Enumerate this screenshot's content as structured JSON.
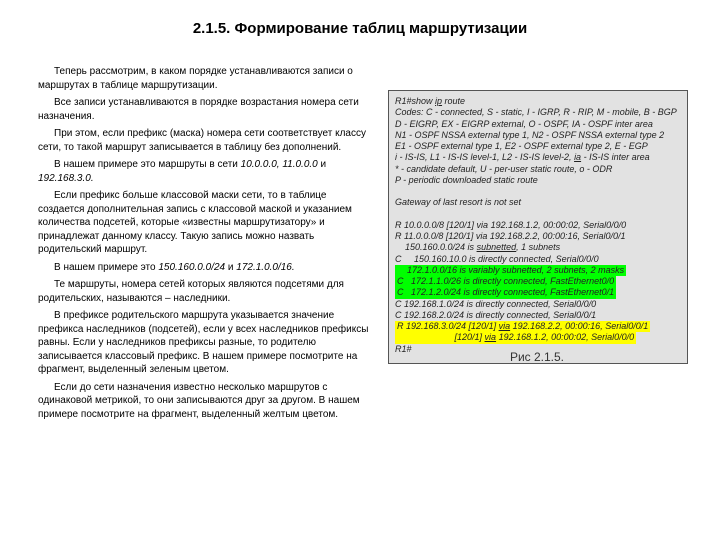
{
  "title": "2.1.5. Формирование таблиц маршрутизации",
  "paragraphs": {
    "p1": "Теперь рассмотрим, в каком порядке устанавливаются записи о маршрутах в таблице маршрутизации.",
    "p2": "Все записи устанавливаются в порядке возрастания номера сети назначения.",
    "p3": "При этом, если префикс (маска) номера сети соответствует классу сети, то такой маршрут записывается в таблицу без дополнений.",
    "p4a": "В нашем примере это маршруты в сети ",
    "p4b": "10.0.0.0, 11.0.0.0",
    "p4c": " и ",
    "p4d": "192.168.3.0.",
    "p5": "Если префикс больше классовой маски сети, то в таблице создается дополнительная запись с классовой маской и указанием количества подсетей, которые «известны маршрутизатору» и принадлежат данному классу. Такую запись можно назвать родительский маршрут.",
    "p6a": "В нашем примере это ",
    "p6b": "150.160.0.0/24",
    "p6c": " и ",
    "p6d": "172.1.0.0/16.",
    "p7": "Те маршруты, номера сетей которых являются подсетями для родительских, называются – наследники.",
    "p8": "В префиксе родительского маршрута указывается значение префикса наследников (подсетей), если у всех наследников префиксы равны. Если у наследников префиксы разные, то родителю записывается классовый префикс. В нашем примере посмотрите на фрагмент, выделенный зеленым цветом.",
    "p9": "Если до сети назначения известно несколько маршрутов с одинаковой метрикой, то они записываются друг за другом. В нашем примере посмотрите на фрагмент, выделенный желтым цветом."
  },
  "router": {
    "cmd": "R1#show ",
    "cmd_u": "ip",
    "cmd2": " route",
    "codes1": "Codes: C - connected, S - static, I - IGRP, R - RIP, M - mobile, B - BGP",
    "codes2": "D - EIGRP, EX - EIGRP external, O - OSPF, IA - OSPF inter area",
    "codes3": "N1 - OSPF NSSA external type 1, N2 - OSPF NSSA external type 2",
    "codes4": "E1 - OSPF external type 1, E2 - OSPF external type 2, E - EGP",
    "codes5": "i - IS-IS, L1 - IS-IS level-1, L2 - IS-IS level-2, ",
    "codes5u": "ia",
    "codes5b": " - IS-IS inter area",
    "codes6": "* - candidate default, U - per-user static route, o - ODR",
    "codes7": "P - periodic downloaded static route",
    "gw": "Gateway of last resort is not set",
    "r1": "R 10.0.0.0/8 [120/1] via 192.168.1.2, 00:00:02, Serial0/0/0",
    "r2": "R 11.0.0.0/8 [120/1] via 192.168.2.2, 00:00:16, Serial0/0/1",
    "r3a": "    150.160.0.0/24 is ",
    "r3u": "subnetted",
    "r3b": ", 1 subnets",
    "r4": "C     150.160.10.0 is directly connected, Serial0/0/0",
    "g1": "    172.1.0.0/16 is variably subnetted, 2 subnets, 2 masks",
    "g2": "C   172.1.1.0/26 is directly connected, FastEthernet0/0",
    "g3": "C   172.1.2.0/24 is directly connected, FastEthernet0/1",
    "r5": "C 192.168.1.0/24 is directly connected, Serial0/0/0",
    "r6": "C 192.168.2.0/24 is directly connected, Serial0/0/1",
    "y1a": "R 192.168.3.0/24 [120/1] ",
    "y1u": "via",
    "y1b": " 192.168.2.2, 00:00:16, Serial0/0/1",
    "y2a": "                       [120/1] ",
    "y2u": "via",
    "y2b": " 192.168.1.2, 00:00:02, Serial0/0/0",
    "prompt": "R1#"
  },
  "caption": "Рис 2.1.5.",
  "colors": {
    "highlight_green": "#00ff00",
    "highlight_yellow": "#ffff00",
    "box_bg": "#e2e2e2",
    "box_border": "#555555"
  }
}
